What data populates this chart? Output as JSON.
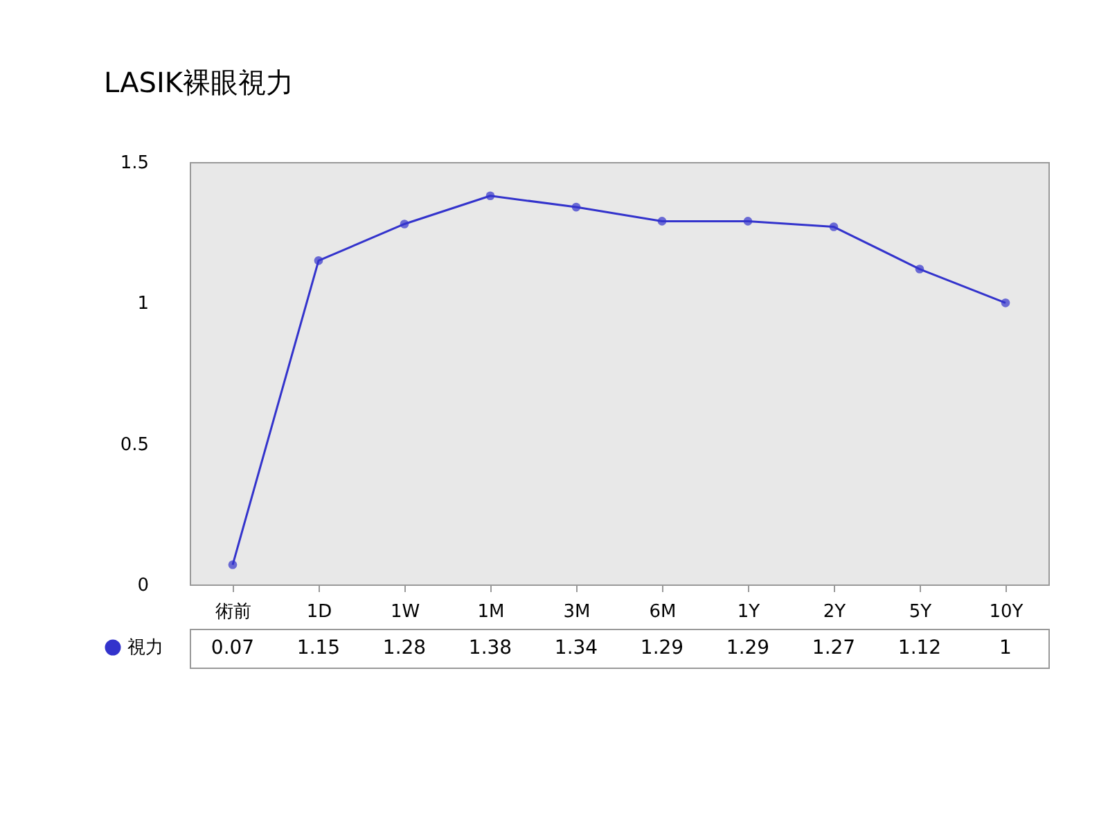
{
  "chart_data": {
    "type": "line",
    "title": "LASIK裸眼視力",
    "categories": [
      "術前",
      "1D",
      "1W",
      "1M",
      "3M",
      "6M",
      "1Y",
      "2Y",
      "5Y",
      "10Y"
    ],
    "series": [
      {
        "name": "視力",
        "color": "#3333cc",
        "values": [
          0.07,
          1.15,
          1.28,
          1.38,
          1.34,
          1.29,
          1.29,
          1.27,
          1.12,
          1
        ]
      }
    ],
    "ylim": [
      0,
      1.5
    ],
    "yticks": [
      0,
      0.5,
      1,
      1.5
    ],
    "grid": false,
    "marker": "circle",
    "data_labels": true,
    "legend": "bottom left"
  }
}
